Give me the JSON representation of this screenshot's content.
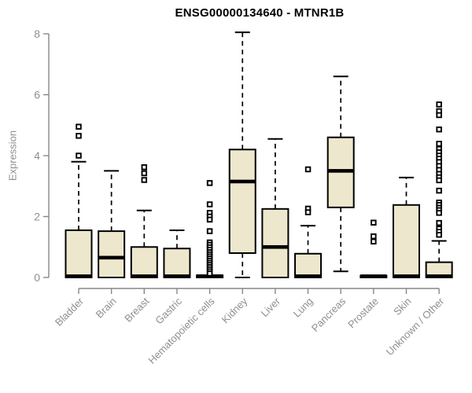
{
  "title": "ENSG00000134640 - MTNR1B",
  "colors": {
    "box_fill": "#EDE8CD",
    "box_stroke": "#000000",
    "median": "#000000",
    "outlier_stroke": "#000000",
    "outlier_fill": "#ffffff",
    "axis_line": "#878787",
    "tick_label": "#8f8f8f",
    "title_color": "#000000"
  },
  "chart_data": {
    "type": "boxplot",
    "title": "ENSG00000134640 - MTNR1B",
    "xlabel": "",
    "ylabel": "Expression",
    "ylim": [
      0,
      8
    ],
    "yticks": [
      0,
      2,
      4,
      6,
      8
    ],
    "grid": false,
    "legend": "none",
    "categories": [
      "Bladder",
      "Brain",
      "Breast",
      "Gastric",
      "Hematopoietic cells",
      "Kidney",
      "Liver",
      "Lung",
      "Pancreas",
      "Prostate",
      "Skin",
      "Unknown / Other"
    ],
    "series": [
      {
        "name": "Bladder",
        "whisker_low": 0,
        "q1": 0,
        "median": 0.04,
        "q3": 1.55,
        "whisker_high": 3.8,
        "outliers": [
          4.0,
          4.65,
          4.95
        ]
      },
      {
        "name": "Brain",
        "whisker_low": 0,
        "q1": 0,
        "median": 0.65,
        "q3": 1.52,
        "whisker_high": 3.5,
        "outliers": []
      },
      {
        "name": "Breast",
        "whisker_low": 0,
        "q1": 0,
        "median": 0.04,
        "q3": 1.0,
        "whisker_high": 2.2,
        "outliers": [
          3.2,
          3.42,
          3.62
        ]
      },
      {
        "name": "Gastric",
        "whisker_low": 0,
        "q1": 0,
        "median": 0.04,
        "q3": 0.95,
        "whisker_high": 1.55,
        "outliers": []
      },
      {
        "name": "Hematopoietic cells",
        "whisker_low": 0,
        "q1": 0,
        "median": 0.04,
        "q3": 0.07,
        "whisker_high": 0.07,
        "outliers": [
          3.1,
          2.4,
          2.12,
          2.0,
          1.9,
          1.52,
          1.15,
          1.07,
          0.99,
          0.91,
          0.83,
          0.76,
          0.69,
          0.62,
          0.55,
          0.48,
          0.41,
          0.34,
          0.27,
          0.2,
          0.13
        ]
      },
      {
        "name": "Kidney",
        "whisker_low": 0,
        "q1": 0.8,
        "median": 3.15,
        "q3": 4.2,
        "whisker_high": 8.05,
        "outliers": []
      },
      {
        "name": "Liver",
        "whisker_low": 0,
        "q1": 0,
        "median": 1.0,
        "q3": 2.25,
        "whisker_high": 4.55,
        "outliers": []
      },
      {
        "name": "Lung",
        "whisker_low": 0,
        "q1": 0,
        "median": 0.04,
        "q3": 0.78,
        "whisker_high": 1.7,
        "outliers": [
          3.55,
          2.26,
          2.14
        ]
      },
      {
        "name": "Pancreas",
        "whisker_low": 0.2,
        "q1": 2.3,
        "median": 3.5,
        "q3": 4.6,
        "whisker_high": 6.6,
        "outliers": []
      },
      {
        "name": "Prostate",
        "whisker_low": 0,
        "q1": 0,
        "median": 0.04,
        "q3": 0.06,
        "whisker_high": 0.06,
        "outliers": [
          1.8,
          1.35,
          1.18
        ]
      },
      {
        "name": "Skin",
        "whisker_low": 0,
        "q1": 0,
        "median": 0.04,
        "q3": 2.38,
        "whisker_high": 3.28,
        "outliers": []
      },
      {
        "name": "Unknown / Other",
        "whisker_low": 0,
        "q1": 0,
        "median": 0.04,
        "q3": 0.5,
        "whisker_high": 1.2,
        "outliers": [
          5.68,
          5.46,
          5.33,
          4.86,
          4.39,
          4.22,
          4.11,
          4.0,
          3.9,
          3.79,
          3.66,
          3.53,
          3.4,
          3.29,
          3.19,
          2.85,
          2.46,
          2.38,
          2.29,
          2.21,
          2.12,
          1.79,
          1.6,
          1.5,
          1.4
        ]
      }
    ]
  }
}
